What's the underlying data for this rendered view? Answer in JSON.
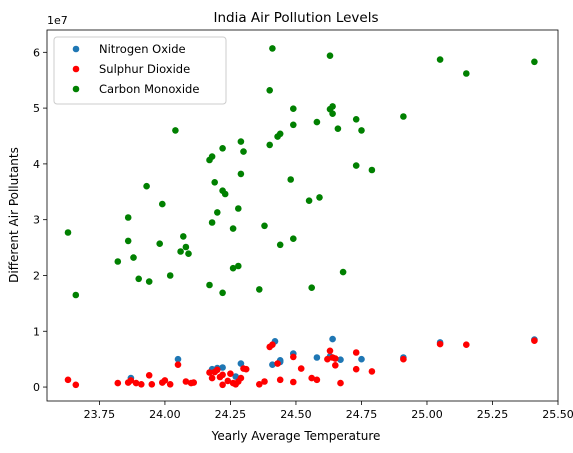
{
  "chart_data": {
    "type": "scatter",
    "title": "India Air Pollution Levels",
    "xlabel": "Yearly Average Temperature",
    "ylabel": "Different Air Pollutants",
    "y_offset_label": "1e7",
    "xlim": [
      23.55,
      25.5
    ],
    "ylim": [
      -2500000,
      64000000
    ],
    "xticks": [
      23.75,
      24.0,
      24.25,
      24.5,
      24.75,
      25.0,
      25.25,
      25.5
    ],
    "xtick_labels": [
      "23.75",
      "24.00",
      "24.25",
      "24.50",
      "24.75",
      "25.00",
      "25.25",
      "25.50"
    ],
    "yticks": [
      0,
      10000000,
      20000000,
      30000000,
      40000000,
      50000000,
      60000000
    ],
    "ytick_labels": [
      "0",
      "1",
      "2",
      "3",
      "4",
      "5",
      "6"
    ],
    "grid": false,
    "legend_position": "top-left",
    "series": [
      {
        "name": "Nitrogen Oxide",
        "color": "#1f77b4",
        "points": [
          [
            24.05,
            5000000
          ],
          [
            24.42,
            8200000
          ],
          [
            24.64,
            8600000
          ],
          [
            25.41,
            8500000
          ],
          [
            25.05,
            8000000
          ],
          [
            24.49,
            6000000
          ],
          [
            24.58,
            5300000
          ],
          [
            24.75,
            5000000
          ],
          [
            24.91,
            5300000
          ],
          [
            24.29,
            4200000
          ],
          [
            24.44,
            4800000
          ],
          [
            24.22,
            3500000
          ],
          [
            24.18,
            3200000
          ],
          [
            23.87,
            1600000
          ],
          [
            24.2,
            3400000
          ],
          [
            24.27,
            1900000
          ],
          [
            24.44,
            4500000
          ],
          [
            24.63,
            5500000
          ],
          [
            24.67,
            4900000
          ],
          [
            24.41,
            4000000
          ]
        ]
      },
      {
        "name": "Sulphur Dioxide",
        "color": "#ff0000",
        "points": [
          [
            23.63,
            1300000
          ],
          [
            23.66,
            400000
          ],
          [
            23.82,
            700000
          ],
          [
            23.86,
            800000
          ],
          [
            23.87,
            1200000
          ],
          [
            23.89,
            700000
          ],
          [
            23.91,
            500000
          ],
          [
            23.94,
            2100000
          ],
          [
            23.95,
            500000
          ],
          [
            23.99,
            800000
          ],
          [
            24.0,
            1200000
          ],
          [
            24.02,
            500000
          ],
          [
            24.05,
            4000000
          ],
          [
            24.08,
            1000000
          ],
          [
            24.1,
            700000
          ],
          [
            24.11,
            800000
          ],
          [
            24.17,
            2600000
          ],
          [
            24.18,
            1600000
          ],
          [
            24.19,
            2700000
          ],
          [
            24.2,
            3100000
          ],
          [
            24.21,
            1800000
          ],
          [
            24.22,
            2200000
          ],
          [
            24.22,
            400000
          ],
          [
            24.24,
            1100000
          ],
          [
            24.25,
            2400000
          ],
          [
            24.26,
            700000
          ],
          [
            24.27,
            500000
          ],
          [
            24.28,
            1000000
          ],
          [
            24.29,
            1600000
          ],
          [
            24.3,
            3300000
          ],
          [
            24.31,
            3200000
          ],
          [
            24.36,
            500000
          ],
          [
            24.38,
            1000000
          ],
          [
            24.4,
            7200000
          ],
          [
            24.41,
            7600000
          ],
          [
            24.43,
            4200000
          ],
          [
            24.44,
            1300000
          ],
          [
            24.49,
            5400000
          ],
          [
            24.49,
            900000
          ],
          [
            24.52,
            3300000
          ],
          [
            24.56,
            1600000
          ],
          [
            24.58,
            1300000
          ],
          [
            24.62,
            5000000
          ],
          [
            24.63,
            6500000
          ],
          [
            24.64,
            5300000
          ],
          [
            24.65,
            5100000
          ],
          [
            24.65,
            3900000
          ],
          [
            24.67,
            700000
          ],
          [
            24.73,
            6200000
          ],
          [
            24.73,
            3200000
          ],
          [
            24.79,
            2800000
          ],
          [
            24.91,
            5000000
          ],
          [
            25.05,
            7700000
          ],
          [
            25.15,
            7600000
          ],
          [
            25.41,
            8300000
          ]
        ]
      },
      {
        "name": "Carbon Monoxide",
        "color": "#008000",
        "points": [
          [
            23.63,
            27700000
          ],
          [
            23.66,
            16500000
          ],
          [
            23.82,
            22500000
          ],
          [
            23.86,
            30400000
          ],
          [
            23.86,
            26200000
          ],
          [
            23.88,
            23200000
          ],
          [
            23.9,
            19400000
          ],
          [
            23.93,
            36000000
          ],
          [
            23.94,
            18900000
          ],
          [
            23.98,
            25700000
          ],
          [
            23.99,
            32800000
          ],
          [
            24.02,
            20000000
          ],
          [
            24.04,
            46000000
          ],
          [
            24.06,
            24300000
          ],
          [
            24.07,
            27000000
          ],
          [
            24.08,
            25100000
          ],
          [
            24.09,
            23900000
          ],
          [
            24.17,
            40700000
          ],
          [
            24.17,
            18300000
          ],
          [
            24.18,
            29500000
          ],
          [
            24.18,
            41300000
          ],
          [
            24.19,
            36700000
          ],
          [
            24.2,
            31300000
          ],
          [
            24.22,
            35200000
          ],
          [
            24.22,
            42800000
          ],
          [
            24.22,
            16900000
          ],
          [
            24.23,
            34600000
          ],
          [
            24.26,
            28400000
          ],
          [
            24.26,
            21300000
          ],
          [
            24.28,
            21700000
          ],
          [
            24.28,
            32000000
          ],
          [
            24.29,
            38200000
          ],
          [
            24.29,
            44000000
          ],
          [
            24.3,
            42200000
          ],
          [
            24.36,
            17500000
          ],
          [
            24.38,
            28900000
          ],
          [
            24.4,
            53200000
          ],
          [
            24.4,
            43400000
          ],
          [
            24.41,
            60700000
          ],
          [
            24.43,
            44900000
          ],
          [
            24.44,
            45400000
          ],
          [
            24.44,
            25500000
          ],
          [
            24.48,
            37200000
          ],
          [
            24.49,
            49900000
          ],
          [
            24.49,
            47000000
          ],
          [
            24.49,
            26600000
          ],
          [
            24.55,
            33400000
          ],
          [
            24.56,
            17800000
          ],
          [
            24.58,
            47500000
          ],
          [
            24.59,
            34000000
          ],
          [
            24.63,
            49800000
          ],
          [
            24.63,
            59400000
          ],
          [
            24.64,
            50300000
          ],
          [
            24.64,
            49000000
          ],
          [
            24.66,
            46300000
          ],
          [
            24.68,
            20600000
          ],
          [
            24.73,
            39700000
          ],
          [
            24.73,
            48000000
          ],
          [
            24.75,
            46000000
          ],
          [
            24.79,
            38900000
          ],
          [
            24.91,
            48500000
          ],
          [
            25.05,
            58700000
          ],
          [
            25.15,
            56200000
          ],
          [
            25.41,
            58300000
          ]
        ]
      }
    ]
  }
}
